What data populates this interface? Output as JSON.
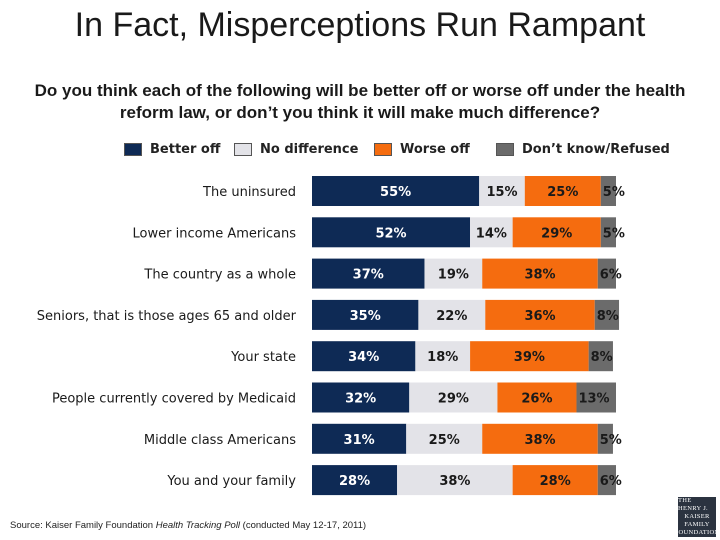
{
  "title": "In Fact, Misperceptions Run Rampant",
  "subtitle": "Do you think each of the following will be better off or worse off under the health reform law, or don’t you think it will make much difference?",
  "source": {
    "prefix": "Source: Kaiser Family Foundation ",
    "poll": "Health Tracking Poll",
    "suffix": " (conducted May 12-17, 2011)"
  },
  "logo": {
    "line1": "THE HENRY J.",
    "line2": "KAISER",
    "line3": "FAMILY",
    "line4": "FOUNDATION"
  },
  "colors": {
    "better": "#0e2a55",
    "nodiff": "#e3e3e8",
    "worse": "#f56c0f",
    "dk": "#6b6b6b"
  },
  "chart_data": {
    "type": "bar",
    "orientation": "horizontal",
    "stacked": true,
    "legend_position": "top",
    "categories": [
      "The uninsured",
      "Lower income Americans",
      "The country as a whole",
      "Seniors, that is those ages 65 and older",
      "Your state",
      "People currently covered by Medicaid",
      "Middle class Americans",
      "You and your family"
    ],
    "series": [
      {
        "name": "Better off",
        "key": "better",
        "values": [
          55,
          52,
          37,
          35,
          34,
          32,
          31,
          28
        ]
      },
      {
        "name": "No difference",
        "key": "nodiff",
        "values": [
          15,
          14,
          19,
          22,
          18,
          29,
          25,
          38
        ]
      },
      {
        "name": "Worse off",
        "key": "worse",
        "values": [
          25,
          29,
          38,
          36,
          39,
          26,
          38,
          28
        ]
      },
      {
        "name": "Don’t know/Refused",
        "key": "dk",
        "values": [
          5,
          5,
          6,
          8,
          8,
          13,
          5,
          6
        ]
      }
    ],
    "unit": "%",
    "xlim": [
      0,
      100
    ]
  }
}
